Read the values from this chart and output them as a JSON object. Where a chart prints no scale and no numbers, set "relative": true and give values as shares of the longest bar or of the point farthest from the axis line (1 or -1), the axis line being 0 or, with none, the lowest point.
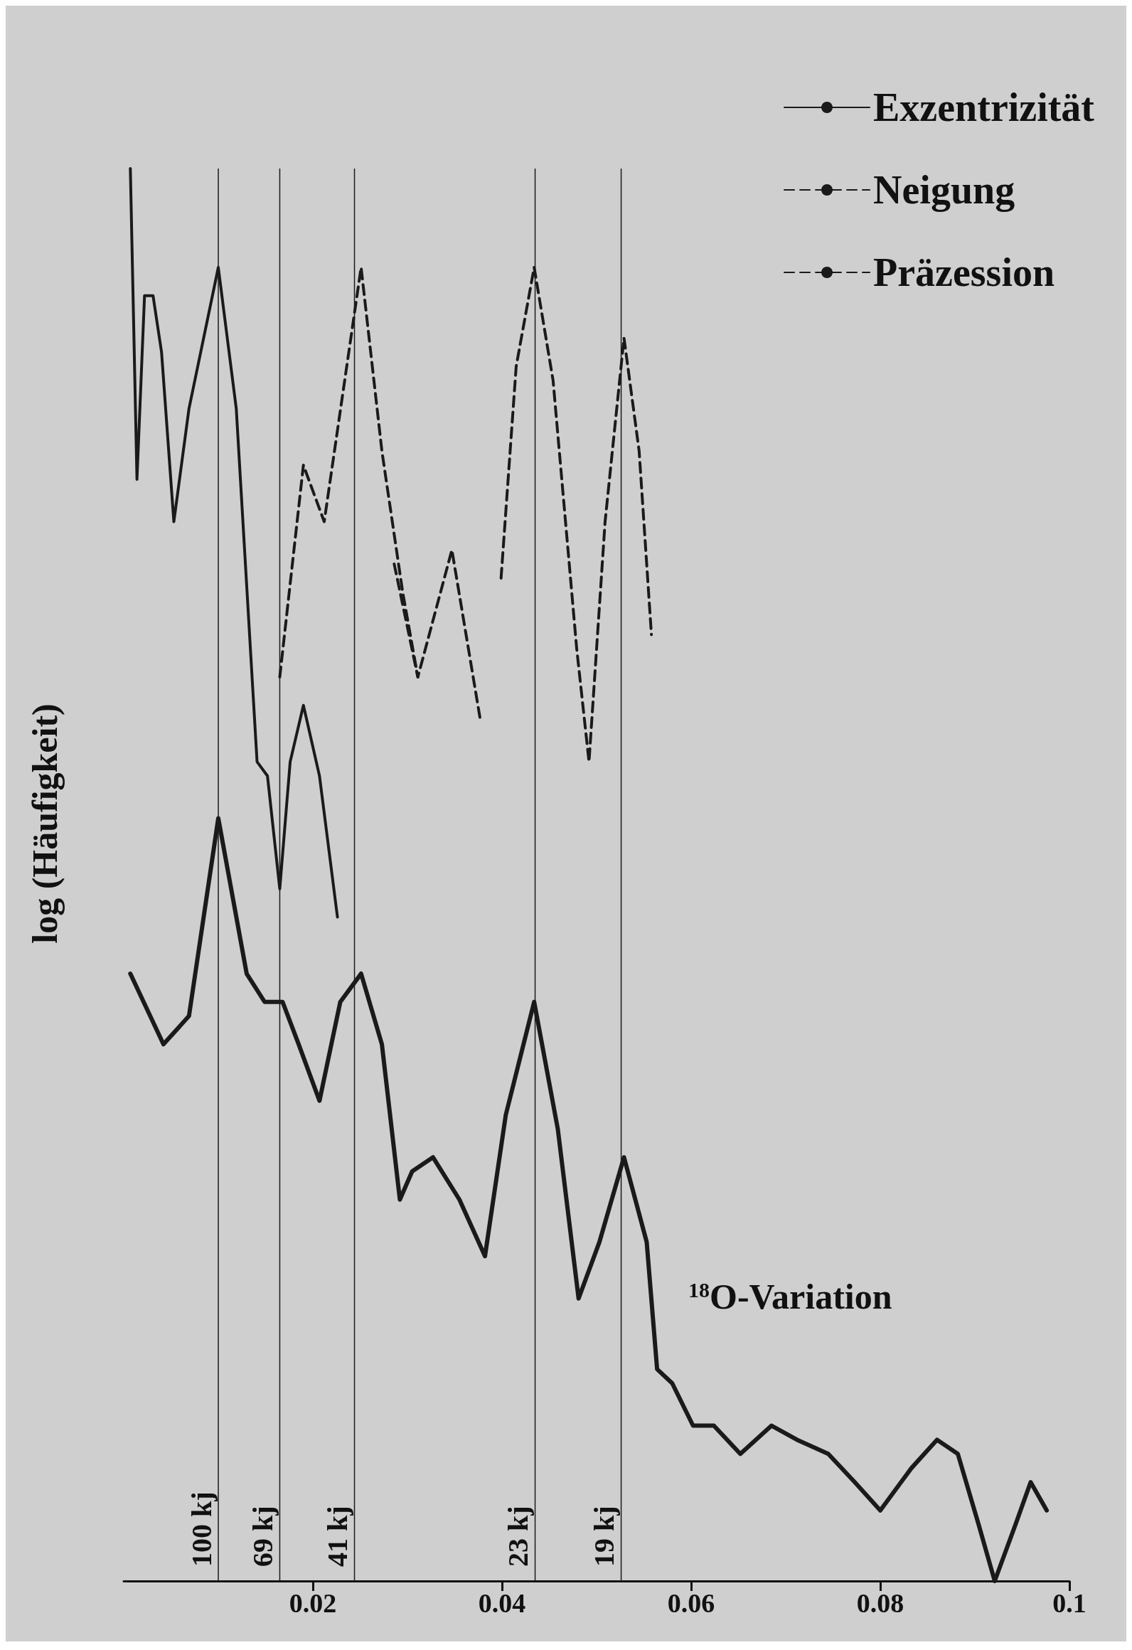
{
  "chart_data": {
    "type": "line",
    "relative": true,
    "ylabel": "log (Häufigkeit)",
    "xlim": [
      0,
      0.1
    ],
    "xticks": [
      0.02,
      0.04,
      0.06,
      0.08,
      0.1
    ],
    "legend": "top right",
    "marker": "none",
    "grid": false,
    "series": [
      {
        "name": "Exzentrizität",
        "color": "#1a1a1a",
        "line_style": "solid",
        "x": [
          0.0007,
          0.0014,
          0.0022,
          0.0031,
          0.004,
          0.0053,
          0.0069,
          0.01,
          0.0119,
          0.0141,
          0.0152,
          0.0165,
          0.0176,
          0.019,
          0.0207,
          0.0226
        ],
        "values": [
          1.0,
          0.78,
          0.91,
          0.91,
          0.87,
          0.75,
          0.83,
          0.93,
          0.83,
          0.58,
          0.57,
          0.49,
          0.58,
          0.62,
          0.57,
          0.47
        ]
      },
      {
        "name": "Neigung",
        "color": "#1a1a1a",
        "line_style": "dashed",
        "x": [
          0.0165,
          0.019,
          0.0212,
          0.0251,
          0.0273,
          0.0295,
          0.0311
        ],
        "values": [
          0.64,
          0.79,
          0.75,
          0.93,
          0.8,
          0.7,
          0.64
        ]
      },
      {
        "name": "Präzession",
        "color": "#1a1a1a",
        "line_style": "dashed",
        "x": [
          0.0286,
          0.0311,
          0.0347,
          0.0377,
          0.0388,
          0.0399,
          0.0415,
          0.0434,
          0.0454,
          0.0479,
          0.0492,
          0.0509,
          0.0529,
          0.0545,
          0.0558
        ],
        "values": [
          0.72,
          0.64,
          0.73,
          0.61,
          null,
          0.71,
          0.86,
          0.93,
          0.85,
          0.66,
          0.58,
          0.75,
          0.88,
          0.8,
          0.67
        ]
      },
      {
        "color": "#1a1a1a",
        "line_style": "solid",
        "x": [
          0.0007,
          0.0042,
          0.0069,
          0.01,
          0.013,
          0.0149,
          0.0168,
          0.0185,
          0.0207,
          0.0229,
          0.0251,
          0.0273,
          0.0292,
          0.0305,
          0.0327,
          0.0355,
          0.0382,
          0.0404,
          0.0434,
          0.0459,
          0.0481,
          0.0503,
          0.0529,
          0.0553,
          0.0564,
          0.058,
          0.0602,
          0.0624,
          0.0652,
          0.0685,
          0.0712,
          0.0745,
          0.0773,
          0.08,
          0.0833,
          0.086,
          0.0882,
          0.0904,
          0.0921,
          0.0943,
          0.0959,
          0.0976
        ],
        "values": [
          0.43,
          0.38,
          0.4,
          0.54,
          0.43,
          0.41,
          0.41,
          0.38,
          0.34,
          0.41,
          0.43,
          0.38,
          0.27,
          0.29,
          0.3,
          0.27,
          0.23,
          0.33,
          0.41,
          0.32,
          0.2,
          0.24,
          0.3,
          0.24,
          0.15,
          0.14,
          0.11,
          0.11,
          0.09,
          0.11,
          0.1,
          0.09,
          0.07,
          0.05,
          0.08,
          0.1,
          0.09,
          0.04,
          0,
          0.04,
          0.07,
          0.05
        ]
      }
    ],
    "ref_lines": [
      {
        "axis": "x",
        "value": 0.01,
        "label": "100 kj"
      },
      {
        "axis": "x",
        "value": 0.0165,
        "label": "69 kj"
      },
      {
        "axis": "x",
        "value": 0.0244,
        "label": "41 kj"
      },
      {
        "axis": "x",
        "value": 0.0435,
        "label": "23 kj"
      },
      {
        "axis": "x",
        "value": 0.0526,
        "label": "19 kj"
      }
    ],
    "annotations": [
      "$^{18}$O-Variation"
    ]
  }
}
